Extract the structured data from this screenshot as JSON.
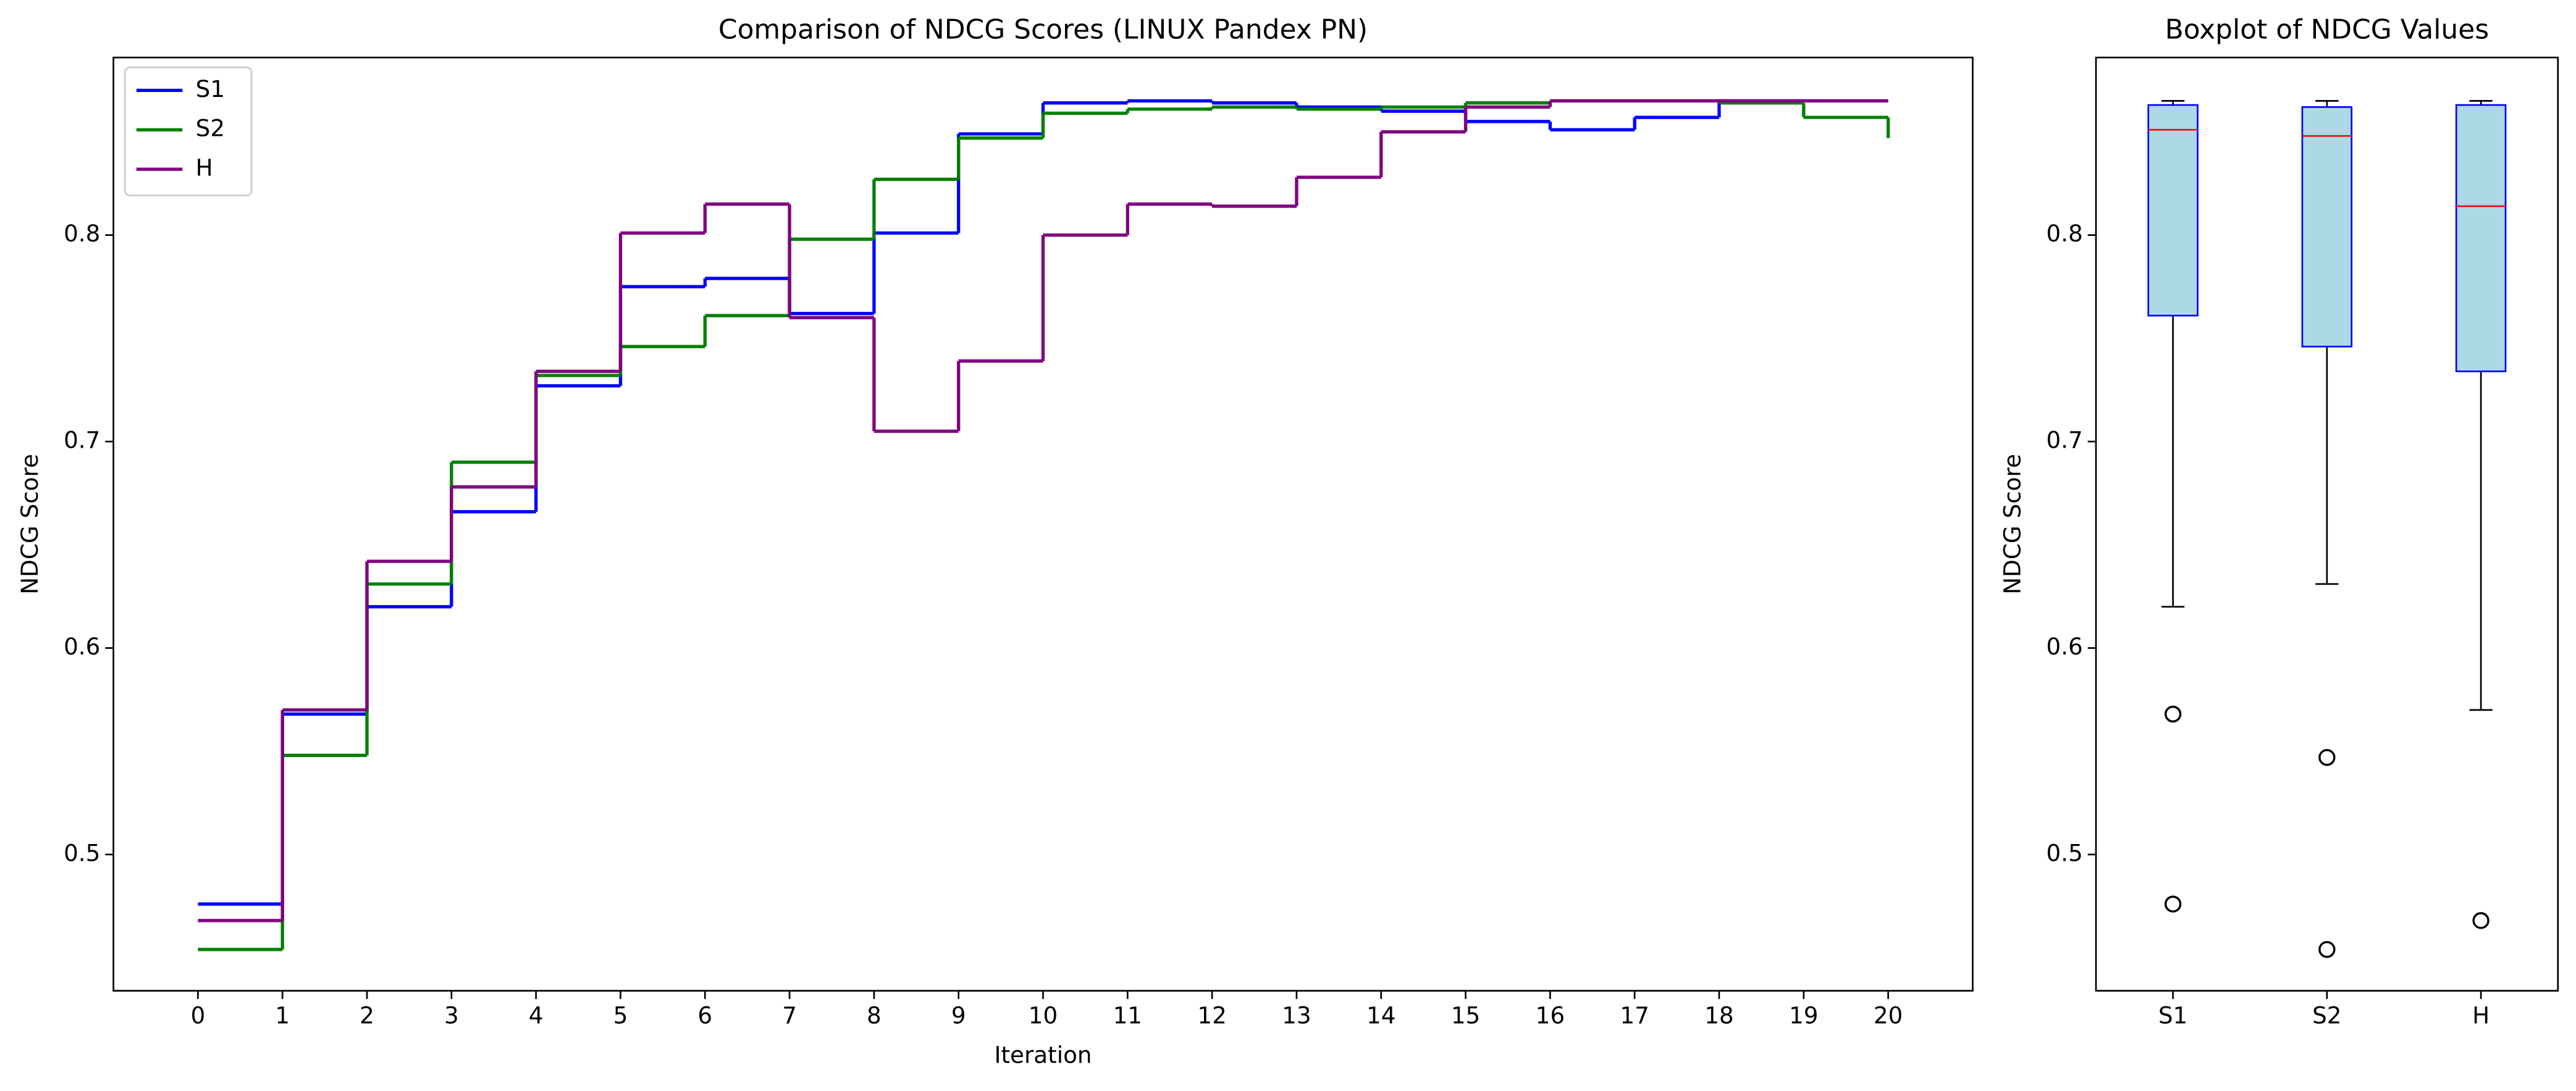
{
  "chart_data": [
    {
      "type": "step",
      "title": "Comparison of NDCG Scores (LINUX Pandex PN)",
      "x_label": "Iteration",
      "y_label": "NDCG Score",
      "x": [
        0,
        1,
        2,
        3,
        4,
        5,
        6,
        7,
        8,
        9,
        10,
        11,
        12,
        13,
        14,
        15,
        16,
        17,
        18,
        19,
        20
      ],
      "series": [
        {
          "name": "S1",
          "color": "#0000ff",
          "values": [
            0.476,
            0.568,
            0.62,
            0.666,
            0.727,
            0.775,
            0.779,
            0.762,
            0.801,
            0.849,
            0.864,
            0.865,
            0.864,
            0.862,
            0.86,
            0.855,
            0.851,
            0.857,
            0.865,
            0.865,
            0.865
          ]
        },
        {
          "name": "S2",
          "color": "#008000",
          "values": [
            0.454,
            0.548,
            0.631,
            0.69,
            0.732,
            0.746,
            0.761,
            0.798,
            0.827,
            0.847,
            0.859,
            0.861,
            0.862,
            0.861,
            0.862,
            0.864,
            0.865,
            0.865,
            0.864,
            0.857,
            0.847
          ]
        },
        {
          "name": "H",
          "color": "#800080",
          "values": [
            0.468,
            0.57,
            0.642,
            0.678,
            0.734,
            0.801,
            0.815,
            0.76,
            0.705,
            0.739,
            0.8,
            0.815,
            0.814,
            0.828,
            0.85,
            0.862,
            0.865,
            0.865,
            0.865,
            0.865,
            0.865
          ]
        }
      ],
      "xlim": [
        -1,
        21
      ],
      "ylim": [
        0.434,
        0.886
      ],
      "xticks": [
        0,
        1,
        2,
        3,
        4,
        5,
        6,
        7,
        8,
        9,
        10,
        11,
        12,
        13,
        14,
        15,
        16,
        17,
        18,
        19,
        20
      ],
      "yticks": [
        0.5,
        0.6,
        0.7,
        0.8
      ],
      "legend": "upper left",
      "grid": false
    },
    {
      "type": "box",
      "title": "Boxplot of NDCG Values",
      "y_label": "NDCG Score",
      "categories": [
        "S1",
        "S2",
        "H"
      ],
      "boxes": [
        {
          "whislo": 0.62,
          "q1": 0.761,
          "median": 0.851,
          "q3": 0.863,
          "whishi": 0.865,
          "fliers": [
            0.568,
            0.476
          ]
        },
        {
          "whislo": 0.631,
          "q1": 0.746,
          "median": 0.848,
          "q3": 0.862,
          "whishi": 0.865,
          "fliers": [
            0.547,
            0.454
          ]
        },
        {
          "whislo": 0.57,
          "q1": 0.734,
          "median": 0.814,
          "q3": 0.863,
          "whishi": 0.865,
          "fliers": [
            0.468
          ]
        }
      ],
      "box_color": "#add8e6",
      "edge_color": "#0000ff",
      "median_color": "#ff0000",
      "whisker_color": "#000000",
      "xlim": [
        0.5,
        3.5
      ],
      "ylim": [
        0.434,
        0.886
      ],
      "yticks": [
        0.5,
        0.6,
        0.7,
        0.8
      ],
      "grid": false
    }
  ]
}
